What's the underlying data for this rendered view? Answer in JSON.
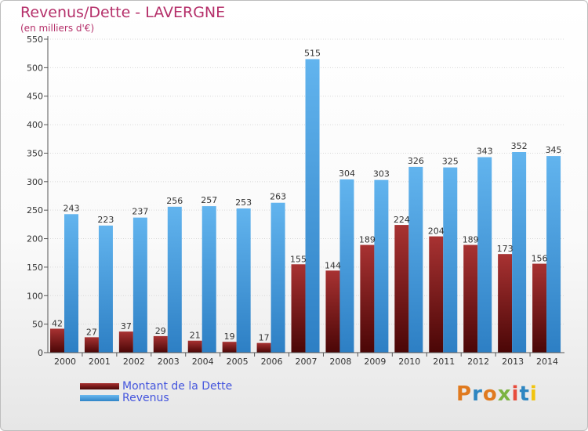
{
  "title": "Revenus/Dette - LAVERGNE",
  "subtitle": "(en milliers d'€)",
  "logo": {
    "text": "Proxiti",
    "colors": [
      "#e07a1f",
      "#2e86c1",
      "#e07a1f",
      "#7cb342",
      "#e74c3c",
      "#2e86c1",
      "#f1c40f"
    ]
  },
  "chart_data": {
    "type": "bar",
    "categories": [
      "2000",
      "2001",
      "2002",
      "2003",
      "2004",
      "2005",
      "2006",
      "2007",
      "2008",
      "2009",
      "2010",
      "2011",
      "2012",
      "2013",
      "2014"
    ],
    "series": [
      {
        "name": "Montant de la Dette",
        "color": "#7a1414",
        "values": [
          42,
          27,
          37,
          29,
          21,
          19,
          17,
          155,
          144,
          189,
          224,
          204,
          189,
          173,
          156
        ]
      },
      {
        "name": "Revenus",
        "color": "#4a9fe0",
        "values": [
          243,
          223,
          237,
          256,
          257,
          253,
          263,
          515,
          304,
          303,
          326,
          325,
          343,
          352,
          345
        ]
      }
    ],
    "ylim": [
      0,
      550
    ],
    "yticks": [
      0,
      50,
      100,
      150,
      200,
      250,
      300,
      350,
      400,
      450,
      500,
      550
    ],
    "grid": true,
    "legend": "bottom-left"
  }
}
